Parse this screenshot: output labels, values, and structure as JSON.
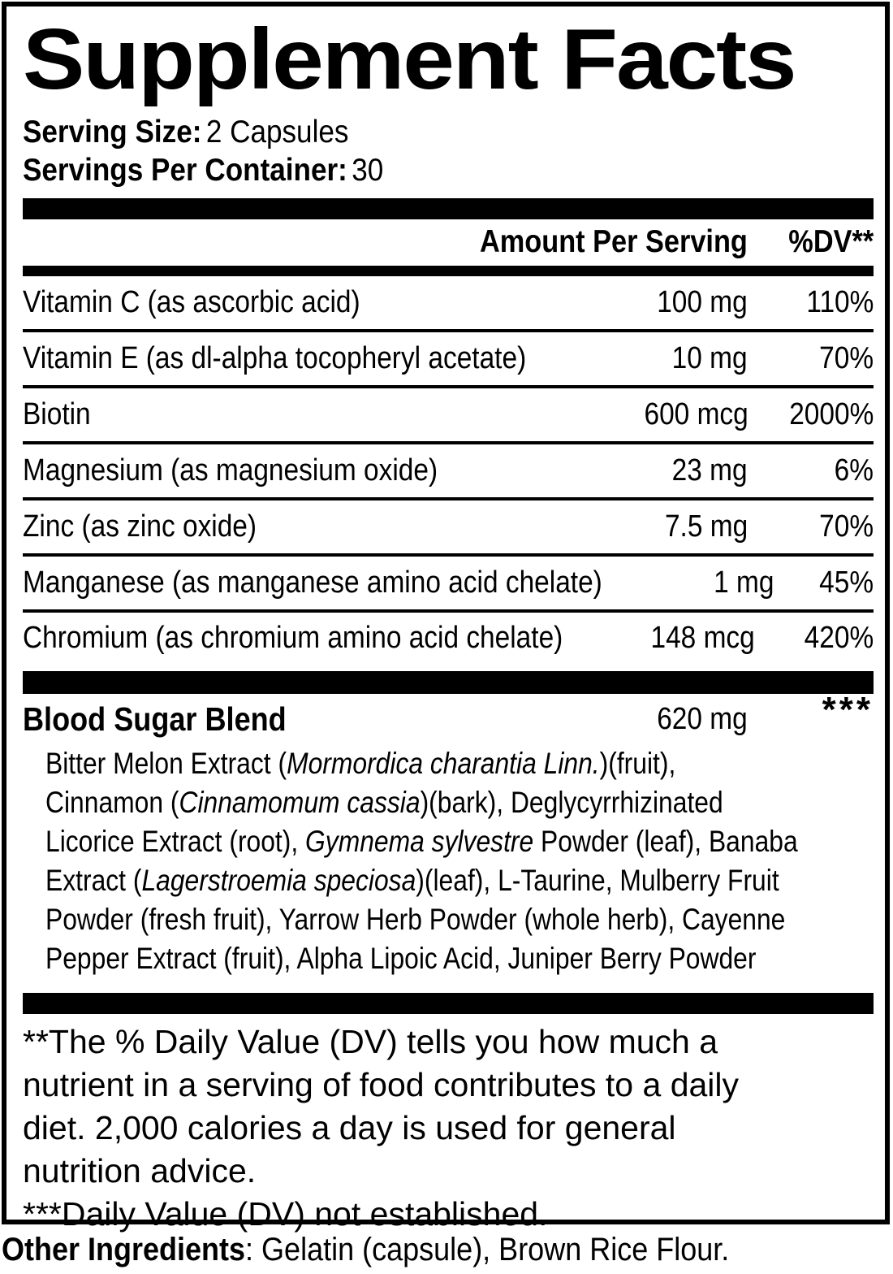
{
  "label": {
    "title": "Supplement Facts",
    "serving": {
      "size_label": "Serving Size:",
      "size_value": "2 Capsules",
      "per_container_label": "Servings Per Container:",
      "per_container_value": "30"
    },
    "header": {
      "amount": "Amount Per Serving",
      "dv": "%DV**"
    },
    "nutrients": [
      {
        "name": "Vitamin C (as ascorbic acid)",
        "amount": "100 mg",
        "dv": "110%"
      },
      {
        "name": "Vitamin E (as dl-alpha tocopheryl acetate)",
        "amount": "10 mg",
        "dv": "70%"
      },
      {
        "name": "Biotin",
        "amount": "600 mcg",
        "dv": "2000%"
      },
      {
        "name": "Magnesium (as magnesium oxide)",
        "amount": "23 mg",
        "dv": "6%"
      },
      {
        "name": "Zinc (as zinc oxide)",
        "amount": "7.5 mg",
        "dv": "70%"
      },
      {
        "name": "Manganese (as manganese amino acid chelate)",
        "amount": "1 mg",
        "dv": "45%"
      },
      {
        "name": "Chromium (as chromium amino acid chelate)",
        "amount": "148 mcg",
        "dv": "420%"
      }
    ],
    "blend": {
      "name": "Blood Sugar Blend",
      "amount": "620 mg",
      "dv": "***",
      "description_lines": [
        [
          {
            "t": "Bitter Melon Extract ("
          },
          {
            "t": "Mormordica charantia Linn.",
            "i": true
          },
          {
            "t": ")(fruit),"
          }
        ],
        [
          {
            "t": "Cinnamon ("
          },
          {
            "t": "Cinnamomum cassia",
            "i": true
          },
          {
            "t": ")(bark), Deglycyrrhizinated"
          }
        ],
        [
          {
            "t": "Licorice Extract (root), "
          },
          {
            "t": "Gymnema sylvestre",
            "i": true
          },
          {
            "t": " Powder (leaf), Banaba"
          }
        ],
        [
          {
            "t": "Extract ("
          },
          {
            "t": "Lagerstroemia speciosa",
            "i": true
          },
          {
            "t": ")(leaf), L-Taurine, Mulberry Fruit"
          }
        ],
        [
          {
            "t": "Powder (fresh fruit), Yarrow Herb Powder (whole herb), Cayenne"
          }
        ],
        [
          {
            "t": "Pepper Extract (fruit), Alpha Lipoic Acid, Juniper Berry Powder"
          }
        ]
      ]
    },
    "footnotes": [
      "**The % Daily Value (DV) tells you how much a",
      "nutrient in a serving of food contributes to a daily",
      "diet. 2,000 calories a day is used for general",
      "nutrition advice.",
      "***Daily Value (DV) not established."
    ],
    "other_ingredients": {
      "label": "Other Ingredients",
      "value": ": Gelatin (capsule), Brown Rice Flour."
    },
    "colors": {
      "ink": "#000000",
      "paper": "#ffffff"
    }
  }
}
